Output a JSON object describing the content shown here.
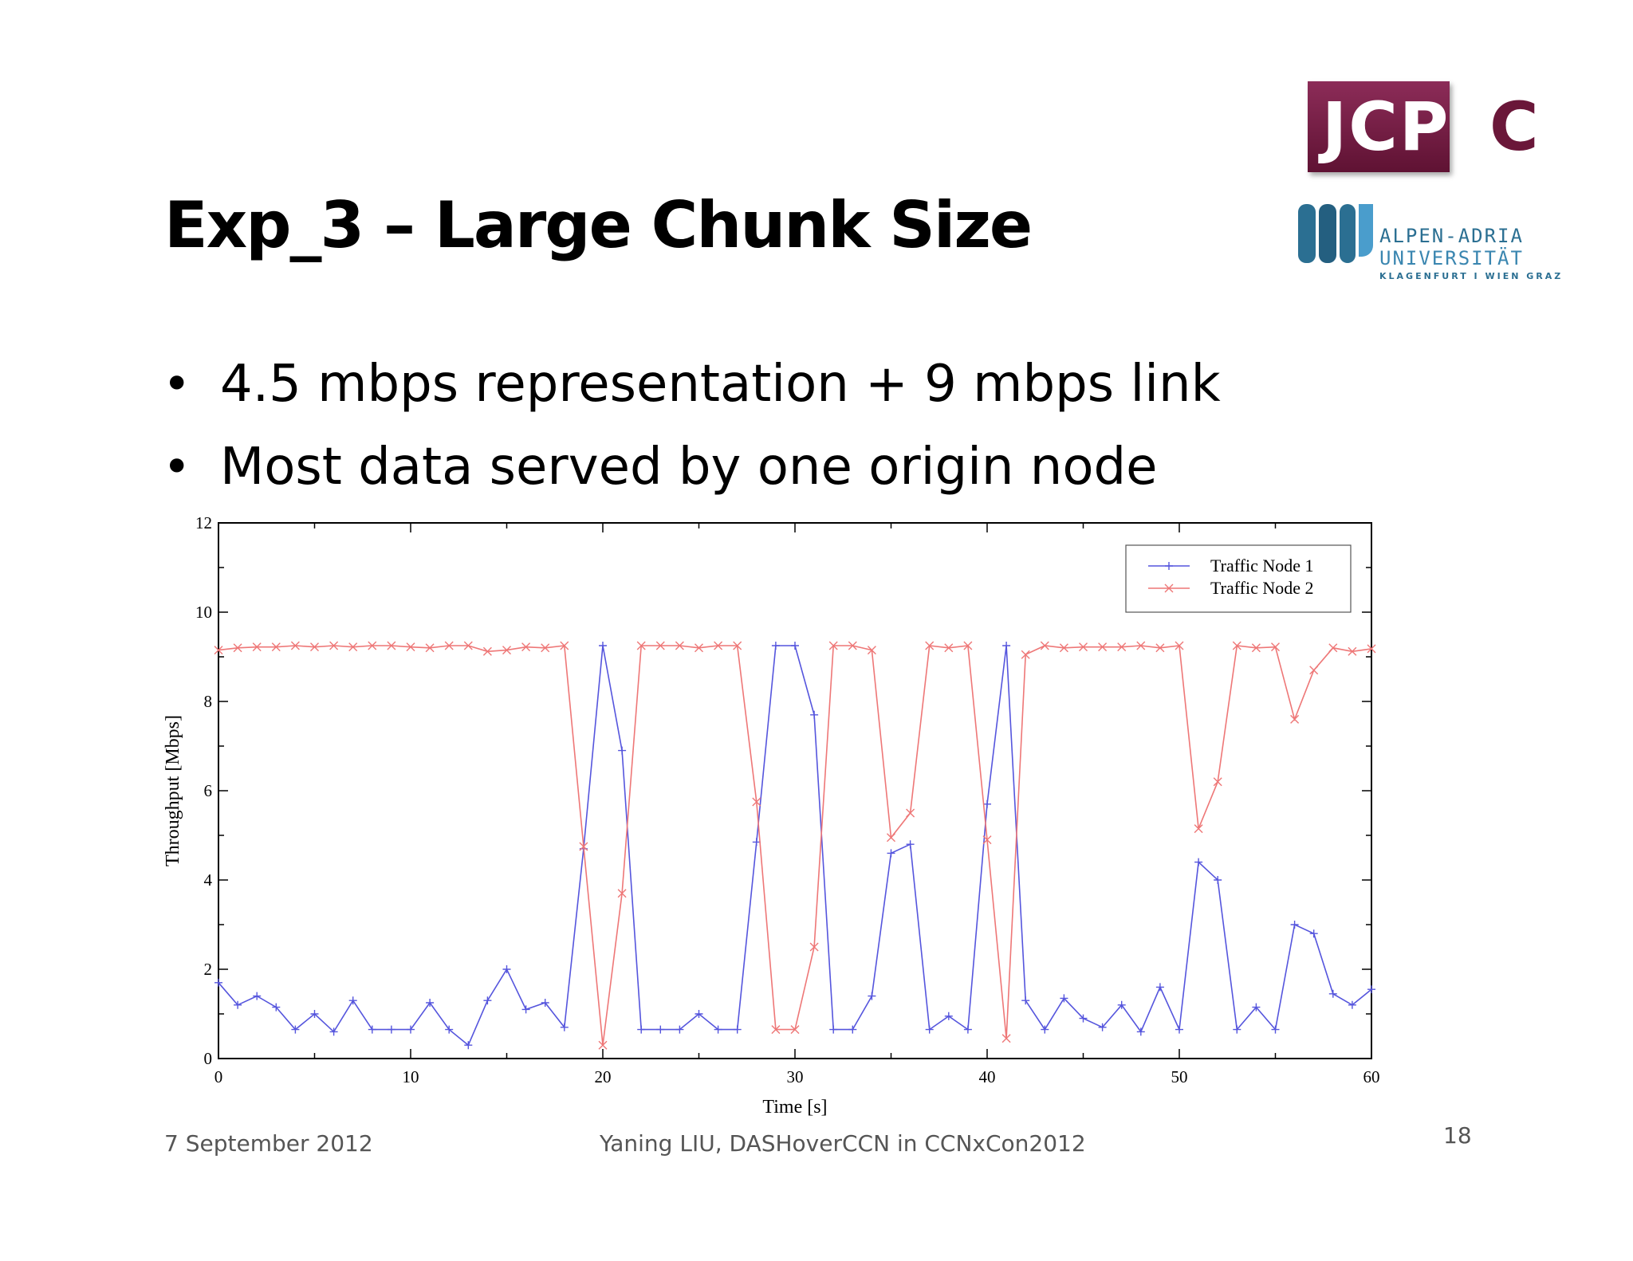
{
  "slide": {
    "title": "Exp_3 – Large Chunk Size",
    "bullets": [
      "4.5 mbps representation + 9 mbps link",
      "Most data served by one origin node"
    ]
  },
  "logos": {
    "jcpc": {
      "boxed_text": "JCP",
      "trailing_text": "C"
    },
    "university": {
      "line1": "ALPEN-ADRIA",
      "line2": "UNIVERSITÄT",
      "line3": "KLAGENFURT I WIEN GRAZ"
    }
  },
  "footer": {
    "date": "7 September 2012",
    "center": "Yaning LIU, DASHoverCCN in CCNxCon2012",
    "page": "18"
  },
  "chart_data": {
    "type": "line",
    "title": "",
    "xlabel": "Time [s]",
    "ylabel": "Throughput [Mbps]",
    "xlim": [
      0,
      60
    ],
    "ylim": [
      0,
      12
    ],
    "x_ticks": [
      0,
      10,
      20,
      30,
      40,
      50,
      60
    ],
    "y_ticks": [
      0,
      2,
      4,
      6,
      8,
      10,
      12
    ],
    "grid": false,
    "legend_position": "top-right",
    "series": [
      {
        "name": "Traffic Node 1",
        "color": "#5555dd",
        "marker": "plus",
        "x": [
          0,
          1,
          2,
          3,
          4,
          5,
          6,
          7,
          8,
          9,
          10,
          11,
          12,
          13,
          14,
          15,
          16,
          17,
          18,
          19,
          20,
          21,
          22,
          23,
          24,
          25,
          26,
          27,
          28,
          29,
          30,
          31,
          32,
          33,
          34,
          35,
          36,
          37,
          38,
          39,
          40,
          41,
          42,
          43,
          44,
          45,
          46,
          47,
          48,
          49,
          50,
          51,
          52,
          53,
          54,
          55,
          56,
          57,
          58,
          59,
          60
        ],
        "y": [
          1.7,
          1.2,
          1.4,
          1.15,
          0.65,
          1.0,
          0.6,
          1.3,
          0.65,
          0.65,
          0.65,
          1.25,
          0.65,
          0.3,
          1.3,
          2.0,
          1.1,
          1.25,
          0.7,
          4.7,
          9.25,
          6.9,
          0.65,
          0.65,
          0.65,
          1.0,
          0.65,
          0.65,
          4.85,
          9.25,
          9.25,
          7.7,
          0.65,
          0.65,
          1.4,
          4.6,
          4.8,
          0.65,
          0.95,
          0.65,
          5.7,
          9.25,
          1.3,
          0.65,
          1.35,
          0.9,
          0.7,
          1.2,
          0.6,
          1.6,
          0.65,
          4.4,
          4.0,
          0.65,
          1.15,
          0.65,
          3.0,
          2.8,
          1.45,
          1.2,
          1.55
        ]
      },
      {
        "name": "Traffic Node 2",
        "color": "#ee7777",
        "marker": "x",
        "x": [
          0,
          1,
          2,
          3,
          4,
          5,
          6,
          7,
          8,
          9,
          10,
          11,
          12,
          13,
          14,
          15,
          16,
          17,
          18,
          19,
          20,
          21,
          22,
          23,
          24,
          25,
          26,
          27,
          28,
          29,
          30,
          31,
          32,
          33,
          34,
          35,
          36,
          37,
          38,
          39,
          40,
          41,
          42,
          43,
          44,
          45,
          46,
          47,
          48,
          49,
          50,
          51,
          52,
          53,
          54,
          55,
          56,
          57,
          58,
          59,
          60
        ],
        "y": [
          9.15,
          9.2,
          9.22,
          9.22,
          9.25,
          9.22,
          9.25,
          9.22,
          9.25,
          9.25,
          9.22,
          9.2,
          9.25,
          9.25,
          9.12,
          9.15,
          9.22,
          9.2,
          9.25,
          4.75,
          0.3,
          3.7,
          9.25,
          9.25,
          9.25,
          9.2,
          9.25,
          9.25,
          5.75,
          0.65,
          0.65,
          2.5,
          9.25,
          9.25,
          9.15,
          4.95,
          5.5,
          9.25,
          9.2,
          9.25,
          4.9,
          0.45,
          9.05,
          9.25,
          9.2,
          9.22,
          9.22,
          9.22,
          9.25,
          9.2,
          9.25,
          5.15,
          6.2,
          9.25,
          9.2,
          9.22,
          7.6,
          8.7,
          9.2,
          9.12,
          9.18
        ]
      }
    ]
  }
}
